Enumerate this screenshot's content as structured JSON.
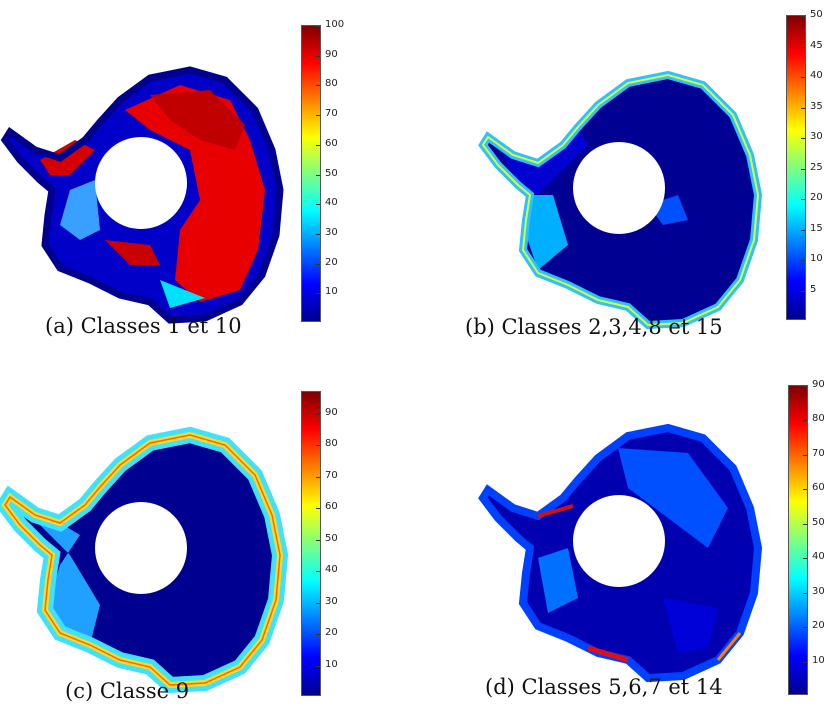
{
  "colormap": "jet",
  "colors": {
    "dark_blue": "#00008f",
    "blue": "#0000ff",
    "cyan": "#00ffff",
    "yellow": "#ffff00",
    "red": "#ff0000",
    "dark_red": "#800000"
  },
  "panels": [
    {
      "caption": "(a) Classes 1 et 10",
      "colorbar": {
        "min": 0,
        "max": 100,
        "ticks": [
          10,
          20,
          30,
          40,
          50,
          60,
          70,
          80,
          90,
          100
        ]
      }
    },
    {
      "caption": "(b) Classes 2,3,4,8 et 15",
      "colorbar": {
        "min": 0,
        "max": 50,
        "ticks": [
          5,
          10,
          15,
          20,
          25,
          30,
          35,
          40,
          45,
          50
        ]
      }
    },
    {
      "caption": "(c) Classe 9",
      "colorbar": {
        "min": 0,
        "max": 97,
        "ticks": [
          10,
          20,
          30,
          40,
          50,
          60,
          70,
          80,
          90
        ]
      }
    },
    {
      "caption": "(d) Classes 5,6,7 et 14",
      "colorbar": {
        "min": 0,
        "max": 90,
        "ticks": [
          10,
          20,
          30,
          40,
          50,
          60,
          70,
          80,
          90
        ]
      }
    }
  ]
}
